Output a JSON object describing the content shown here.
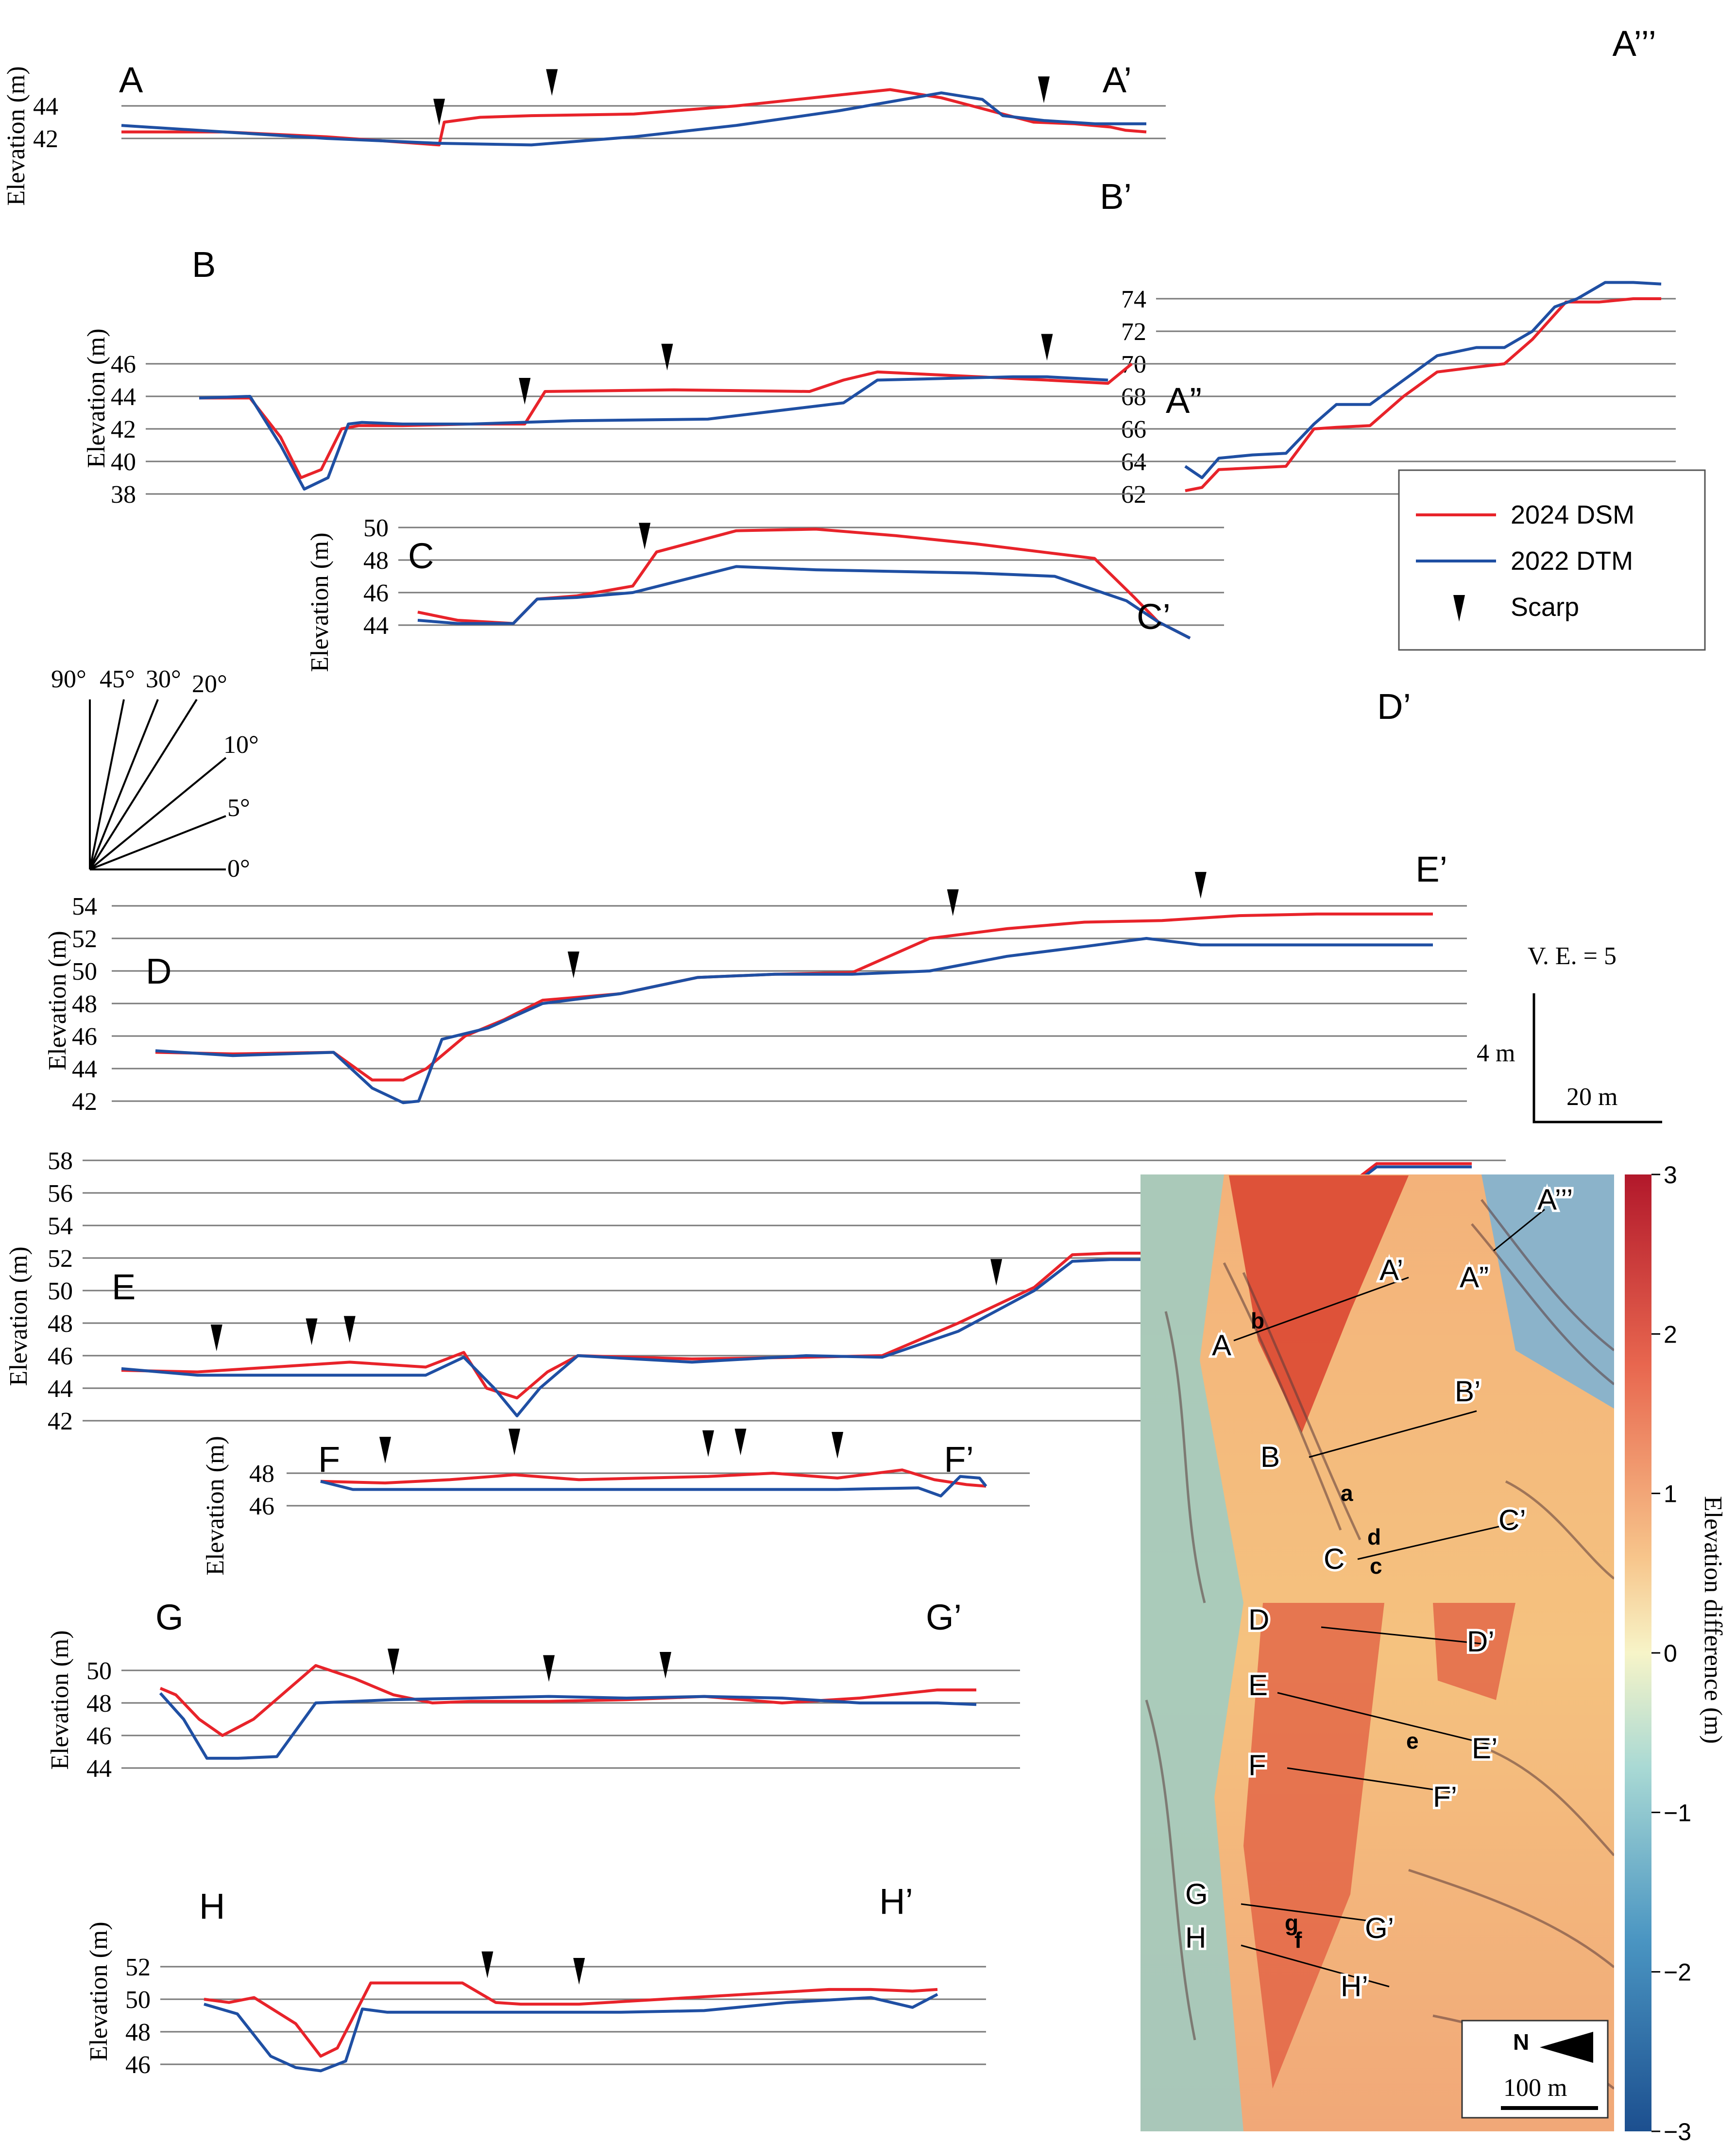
{
  "chart_data": [
    {
      "id": "A",
      "type": "line",
      "labels": [
        "A",
        "A’"
      ],
      "ylabel": "Elevation (m)",
      "yticks": [
        42,
        44
      ],
      "series": [
        {
          "name": "2024 DSM",
          "x": [
            0,
            20,
            40,
            62,
            63,
            70,
            80,
            100,
            120,
            138,
            150,
            160,
            172,
            178,
            186,
            193,
            196,
            200
          ],
          "y": [
            42.4,
            42.4,
            42.1,
            41.6,
            43.0,
            43.3,
            43.4,
            43.5,
            44.0,
            44.6,
            45.0,
            44.5,
            43.5,
            43.0,
            42.9,
            42.7,
            42.5,
            42.4
          ]
        },
        {
          "name": "2022 DTM",
          "x": [
            0,
            20,
            40,
            62,
            80,
            100,
            120,
            140,
            160,
            168,
            172,
            180,
            190,
            200
          ],
          "y": [
            42.8,
            42.4,
            42.0,
            41.7,
            41.6,
            42.1,
            42.8,
            43.7,
            44.8,
            44.4,
            43.4,
            43.1,
            42.9,
            42.9
          ]
        }
      ],
      "scarps": [
        62,
        84,
        180
      ]
    },
    {
      "id": "A2",
      "type": "line",
      "labels": [
        "A”",
        "A’’’"
      ],
      "yticks": [
        62,
        64,
        66,
        68,
        70,
        72,
        74
      ],
      "series": [
        {
          "name": "2024 DSM",
          "x": [
            0,
            6,
            12,
            24,
            36,
            46,
            54,
            66,
            78,
            90,
            104,
            114,
            124,
            136,
            148,
            160,
            170
          ],
          "y": [
            62.2,
            62.4,
            63.5,
            63.6,
            63.7,
            66.0,
            66.1,
            66.2,
            68.0,
            69.5,
            69.8,
            70.0,
            71.5,
            73.8,
            73.8,
            74.0,
            74.0
          ]
        },
        {
          "name": "2022 DTM",
          "x": [
            0,
            6,
            12,
            24,
            36,
            46,
            54,
            66,
            78,
            90,
            104,
            114,
            124,
            132,
            140,
            150,
            160,
            170
          ],
          "y": [
            63.7,
            63.0,
            64.2,
            64.4,
            64.5,
            66.3,
            67.5,
            67.5,
            69.0,
            70.5,
            71.0,
            71.0,
            72.0,
            73.5,
            74.0,
            75.0,
            75.0,
            74.9
          ]
        }
      ],
      "scarps": []
    },
    {
      "id": "B",
      "type": "line",
      "labels": [
        "B",
        "B’"
      ],
      "yticks": [
        38,
        40,
        42,
        44,
        46
      ],
      "series": [
        {
          "name": "2024 DSM",
          "x": [
            0,
            15,
            24,
            30,
            36,
            42,
            47,
            60,
            80,
            96,
            102,
            140,
            180,
            190,
            200,
            230,
            250,
            268,
            275
          ],
          "y": [
            43.9,
            43.9,
            41.5,
            39.0,
            39.5,
            42.0,
            42.2,
            42.2,
            42.3,
            42.3,
            44.3,
            44.4,
            44.3,
            45.0,
            45.5,
            45.2,
            45.0,
            44.8,
            46.0
          ]
        },
        {
          "name": "2022 DTM",
          "x": [
            0,
            15,
            24,
            31,
            38,
            44,
            48,
            60,
            80,
            110,
            150,
            170,
            190,
            200,
            220,
            240,
            250,
            268
          ],
          "y": [
            43.9,
            44.0,
            41.0,
            38.3,
            39.0,
            42.3,
            42.4,
            42.3,
            42.3,
            42.5,
            42.6,
            43.1,
            43.6,
            45.0,
            45.1,
            45.2,
            45.2,
            45.0
          ]
        }
      ],
      "scarps": [
        96,
        138,
        250
      ]
    },
    {
      "id": "C",
      "type": "line",
      "labels": [
        "C",
        "C’"
      ],
      "yticks": [
        44,
        46,
        48,
        50
      ],
      "series": [
        {
          "name": "2024 DSM",
          "x": [
            0,
            10,
            24,
            30,
            40,
            54,
            60,
            80,
            100,
            120,
            140,
            160,
            170,
            180,
            186,
            194
          ],
          "y": [
            44.8,
            44.3,
            44.1,
            45.6,
            45.8,
            46.4,
            48.5,
            49.8,
            49.9,
            49.5,
            49.0,
            48.4,
            48.1,
            45.7,
            44.2,
            43.2
          ]
        },
        {
          "name": "2022 DTM",
          "x": [
            0,
            10,
            24,
            30,
            40,
            54,
            80,
            100,
            120,
            140,
            160,
            178,
            186,
            194
          ],
          "y": [
            44.3,
            44.1,
            44.1,
            45.6,
            45.7,
            46.0,
            47.6,
            47.4,
            47.3,
            47.2,
            47.0,
            45.5,
            44.2,
            43.2
          ]
        }
      ],
      "scarps": [
        57
      ]
    },
    {
      "id": "D",
      "type": "line",
      "labels": [
        "D",
        "D’"
      ],
      "yticks": [
        42,
        44,
        46,
        48,
        50,
        52,
        54
      ],
      "series": [
        {
          "name": "2024 DSM",
          "x": [
            0,
            20,
            46,
            56,
            64,
            70,
            80,
            90,
            100,
            120,
            140,
            160,
            180,
            200,
            220,
            240,
            260,
            280,
            300,
            330
          ],
          "y": [
            45.0,
            44.9,
            45.0,
            43.3,
            43.3,
            44.0,
            46.0,
            47.0,
            48.2,
            48.6,
            49.6,
            49.8,
            49.9,
            52.0,
            52.6,
            53.0,
            53.1,
            53.4,
            53.5,
            53.5
          ]
        },
        {
          "name": "2022 DTM",
          "x": [
            0,
            20,
            46,
            56,
            64,
            68,
            74,
            86,
            100,
            120,
            140,
            160,
            180,
            200,
            220,
            240,
            256,
            270,
            300,
            330
          ],
          "y": [
            45.1,
            44.8,
            45.0,
            42.8,
            41.9,
            42.0,
            45.8,
            46.5,
            48.0,
            48.6,
            49.6,
            49.8,
            49.8,
            50.0,
            50.9,
            51.5,
            52.0,
            51.6,
            51.6,
            51.6
          ]
        }
      ],
      "scarps": [
        108,
        206,
        270
      ]
    },
    {
      "id": "E",
      "type": "line",
      "labels": [
        "E",
        "E’"
      ],
      "yticks": [
        42,
        44,
        46,
        48,
        50,
        52,
        54,
        56,
        58
      ],
      "series": [
        {
          "name": "2024 DSM",
          "x": [
            0,
            20,
            40,
            60,
            80,
            90,
            96,
            104,
            112,
            120,
            150,
            180,
            200,
            220,
            240,
            250,
            260,
            280,
            300,
            310,
            320,
            330,
            340,
            355
          ],
          "y": [
            45.1,
            45.0,
            45.3,
            45.6,
            45.3,
            46.2,
            44.0,
            43.4,
            45.0,
            46.0,
            45.8,
            45.9,
            46.0,
            48.0,
            50.2,
            52.2,
            52.3,
            52.3,
            52.3,
            52.3,
            56.0,
            57.8,
            57.8,
            57.8
          ]
        },
        {
          "name": "2022 DTM",
          "x": [
            0,
            20,
            40,
            60,
            80,
            90,
            98,
            104,
            110,
            120,
            150,
            180,
            200,
            220,
            240,
            250,
            260,
            280,
            300,
            310,
            320,
            330,
            340,
            355
          ],
          "y": [
            45.2,
            44.8,
            44.8,
            44.8,
            44.8,
            45.9,
            44.0,
            42.3,
            44.0,
            46.0,
            45.6,
            46.0,
            45.9,
            47.5,
            50.0,
            51.8,
            51.9,
            51.9,
            52.0,
            52.0,
            55.8,
            57.6,
            57.6,
            57.6
          ]
        }
      ],
      "scarps": [
        25,
        50,
        60,
        230
      ]
    },
    {
      "id": "F",
      "type": "line",
      "labels": [
        "F",
        "F’"
      ],
      "yticks": [
        46,
        48
      ],
      "series": [
        {
          "name": "2024 DSM",
          "x": [
            0,
            20,
            40,
            60,
            80,
            100,
            120,
            140,
            160,
            180,
            190,
            200,
            206
          ],
          "y": [
            47.5,
            47.4,
            47.6,
            47.9,
            47.6,
            47.7,
            47.8,
            48.0,
            47.7,
            48.2,
            47.6,
            47.3,
            47.2
          ]
        },
        {
          "name": "2022 DTM",
          "x": [
            0,
            10,
            40,
            80,
            120,
            160,
            185,
            192,
            198,
            204,
            206
          ],
          "y": [
            47.5,
            47.0,
            47.0,
            47.0,
            47.0,
            47.0,
            47.1,
            46.6,
            47.8,
            47.7,
            47.2
          ]
        }
      ],
      "scarps": [
        20,
        60,
        120,
        130,
        160
      ]
    },
    {
      "id": "G",
      "type": "line",
      "labels": [
        "G",
        "G’"
      ],
      "yticks": [
        44,
        46,
        48,
        50
      ],
      "series": [
        {
          "name": "2024 DSM",
          "x": [
            0,
            4,
            10,
            16,
            20,
            24,
            40,
            50,
            60,
            70,
            80,
            100,
            120,
            140,
            160,
            180,
            200,
            210
          ],
          "y": [
            48.9,
            48.5,
            47.0,
            46.0,
            46.5,
            47.0,
            50.3,
            49.5,
            48.5,
            48.0,
            48.1,
            48.1,
            48.2,
            48.4,
            48.0,
            48.3,
            48.8,
            48.8
          ]
        },
        {
          "name": "2022 DTM",
          "x": [
            0,
            6,
            12,
            20,
            30,
            40,
            50,
            60,
            80,
            100,
            120,
            140,
            160,
            180,
            200,
            210
          ],
          "y": [
            48.6,
            47.0,
            44.6,
            44.6,
            44.7,
            48.0,
            48.1,
            48.2,
            48.3,
            48.4,
            48.3,
            48.4,
            48.3,
            48.0,
            48.0,
            47.9
          ]
        }
      ],
      "scarps": [
        60,
        100,
        130
      ]
    },
    {
      "id": "H",
      "type": "line",
      "labels": [
        "H",
        "H’"
      ],
      "yticks": [
        46,
        48,
        50,
        52
      ],
      "series": [
        {
          "name": "2024 DSM",
          "x": [
            0,
            6,
            12,
            22,
            28,
            32,
            36,
            40,
            52,
            62,
            70,
            76,
            90,
            110,
            130,
            150,
            160,
            170,
            176
          ],
          "y": [
            50.0,
            49.8,
            50.1,
            48.5,
            46.5,
            47.0,
            49.0,
            51.0,
            51.0,
            51.0,
            49.8,
            49.7,
            49.7,
            50.0,
            50.3,
            50.6,
            50.6,
            50.5,
            50.6
          ]
        },
        {
          "name": "2022 DTM",
          "x": [
            0,
            8,
            16,
            22,
            28,
            34,
            38,
            44,
            60,
            80,
            100,
            120,
            140,
            160,
            170,
            176
          ],
          "y": [
            49.7,
            49.1,
            46.5,
            45.8,
            45.6,
            46.2,
            49.4,
            49.2,
            49.2,
            49.2,
            49.2,
            49.3,
            49.8,
            50.1,
            49.5,
            50.3
          ]
        }
      ],
      "scarps": [
        68,
        90
      ]
    }
  ],
  "legend": {
    "dsm": "2024 DSM",
    "dtm": "2022 DTM",
    "scarp": "Scarp"
  },
  "angles": [
    "90°",
    "45°",
    "30°",
    "20°",
    "10°",
    "5°",
    "0°"
  ],
  "ve": "V. E. = 5",
  "scale_v": "4 m",
  "scale_h": "20 m",
  "map": {
    "colorbar_label": "Elevation difference (m)",
    "colorbar_ticks": [
      "3",
      "2",
      "1",
      "0",
      "−1",
      "−2",
      "−3"
    ],
    "north": "N",
    "scale": "100 m",
    "points": [
      "a",
      "b",
      "c",
      "d",
      "e",
      "f",
      "g"
    ]
  },
  "colors": {
    "dsm": "#e8232a",
    "dtm": "#1f4fa3"
  }
}
